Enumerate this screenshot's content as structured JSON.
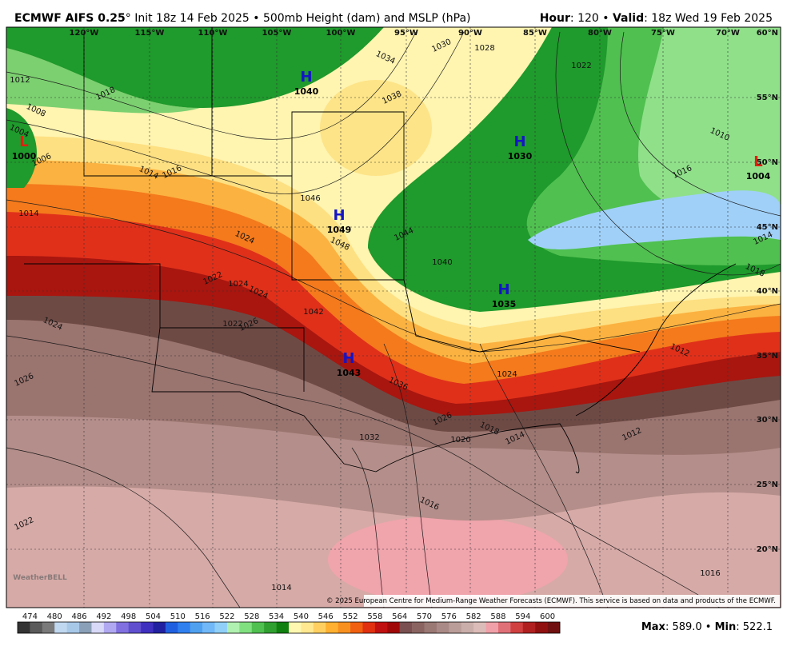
{
  "header": {
    "title": "ECMWF AIFS 0.25",
    "title_rest": "° Init 18z 14 Feb 2025 • 500mb Height (dam) and MSLP (hPa)",
    "hour_label": "Hour",
    "hour_value": ": 120 • ",
    "valid_label": "Valid",
    "valid_value": ": 18z Wed 19 Feb 2025"
  },
  "map": {
    "longitudes": [
      "120°W",
      "115°W",
      "110°W",
      "105°W",
      "100°W",
      "95°W",
      "90°W",
      "85°W",
      "80°W",
      "75°W",
      "70°W"
    ],
    "latitudes": [
      "60°N",
      "55°N",
      "50°N",
      "45°N",
      "40°N",
      "35°N",
      "30°N",
      "25°N",
      "20°N"
    ],
    "centers": [
      {
        "type": "H",
        "pressure": 1040
      },
      {
        "type": "H",
        "pressure": 1049
      },
      {
        "type": "H",
        "pressure": 1030
      },
      {
        "type": "H",
        "pressure": 1035
      },
      {
        "type": "H",
        "pressure": 1043
      },
      {
        "type": "L",
        "pressure": 1004
      },
      {
        "type": "L",
        "pressure": 1000
      }
    ],
    "isobar_labels": [
      1018,
      1012,
      1008,
      1030,
      1028,
      1034,
      1038,
      1022,
      1010,
      1016,
      1046,
      1048,
      1044,
      1040,
      1024,
      1022,
      1024,
      1024,
      1026,
      1022,
      1024,
      1026,
      1042,
      1036,
      1026,
      1020,
      1018,
      1014,
      1024,
      1012,
      1012,
      1032,
      1016,
      1022,
      1014,
      1018,
      1014,
      1016,
      1004,
      1006,
      1014,
      1014,
      1016
    ],
    "copyright": "© 2025 European Centre for Medium-Range Weather Forecasts (ECMWF). This service is based on data and products of the ECMWF.",
    "logo": "WeatherBELL"
  },
  "colorbar": {
    "labels": [
      474,
      480,
      486,
      492,
      498,
      504,
      510,
      516,
      522,
      528,
      534,
      540,
      546,
      552,
      558,
      564,
      570,
      576,
      582,
      588,
      594,
      600
    ]
  },
  "footer": {
    "max_label": "Max",
    "max_value": ": 589.0 • ",
    "min_label": "Min",
    "min_value": ": 522.1"
  }
}
